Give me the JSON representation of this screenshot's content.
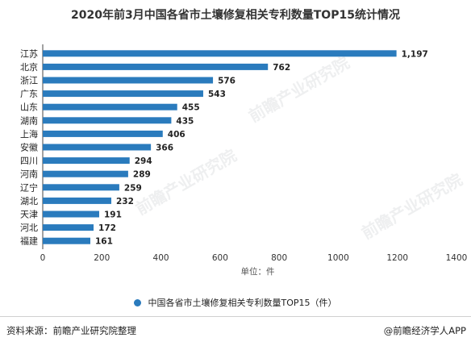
{
  "title": "2020年前3月中国各省市土壤修复相关专利数量TOP15统计情况",
  "legend_label": "中国各省市土壤修复相关专利数量TOP15（件）",
  "footer": {
    "source": "资料来源：前瞻产业研究院整理",
    "brand": "@前瞻经济学人APP"
  },
  "colors": {
    "bar": "#2a7bbd",
    "text": "#222222"
  },
  "chart_data": {
    "type": "bar",
    "orientation": "horizontal",
    "categories": [
      "江苏",
      "北京",
      "浙江",
      "广东",
      "山东",
      "湖南",
      "上海",
      "安徽",
      "四川",
      "河南",
      "辽宁",
      "湖北",
      "天津",
      "河北",
      "福建"
    ],
    "values": [
      1197,
      762,
      576,
      543,
      455,
      435,
      406,
      366,
      294,
      289,
      259,
      232,
      191,
      172,
      161
    ],
    "value_labels": [
      "1,197",
      "762",
      "576",
      "543",
      "455",
      "435",
      "406",
      "366",
      "294",
      "289",
      "259",
      "232",
      "191",
      "172",
      "161"
    ],
    "xlim": [
      0,
      1400
    ],
    "xticks": [
      0,
      200,
      400,
      600,
      800,
      1000,
      1200,
      1400
    ],
    "xlabel": "单位：件",
    "series": [
      {
        "name": "中国各省市土壤修复相关专利数量TOP15（件）",
        "values": [
          1197,
          762,
          576,
          543,
          455,
          435,
          406,
          366,
          294,
          289,
          259,
          232,
          191,
          172,
          161
        ]
      }
    ],
    "grid": false,
    "legend_position": "bottom"
  }
}
